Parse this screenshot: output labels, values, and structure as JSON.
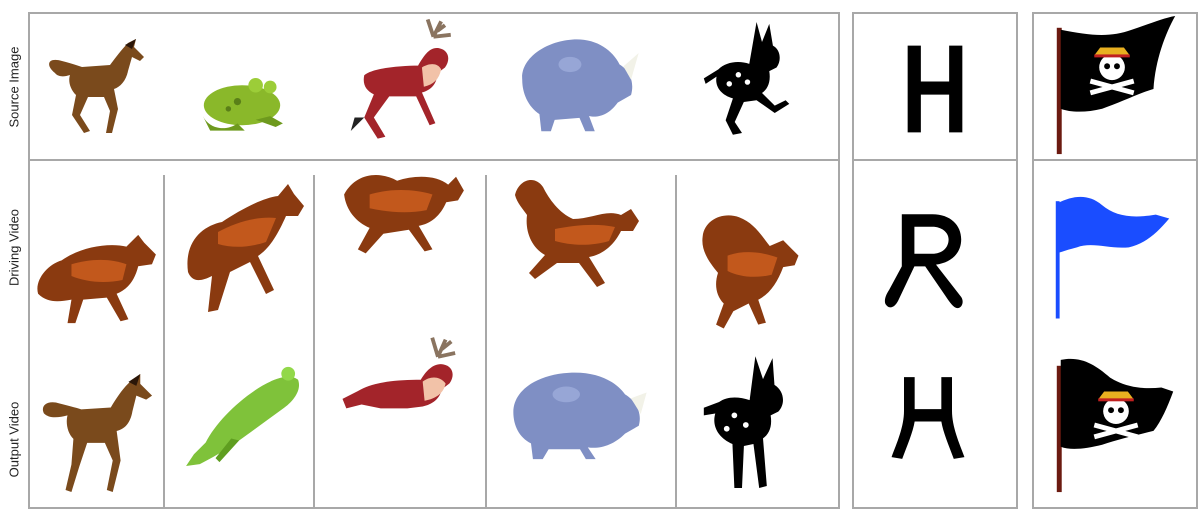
{
  "row_labels": {
    "source": "Source Image",
    "driving": "Driving Video",
    "output": "Output Video"
  },
  "colors": {
    "border": "#a8a8a8",
    "horse": "#7a4a1c",
    "wolf": "#8a3a10",
    "frog": "#8ab82a",
    "deer_red": "#a3242a",
    "rhino": "#7f8fc4",
    "black": "#000000",
    "blue_flag": "#1a4dff"
  },
  "letters": {
    "source": "H",
    "driving": "R"
  },
  "icons": {
    "source_row": [
      "horse-icon",
      "frog-icon",
      "reindeer-icon",
      "rhino-icon",
      "fawn-icon"
    ],
    "driving_row": [
      "wolf-icon",
      "wolf-icon",
      "wolf-icon",
      "wolf-icon",
      "wolf-icon"
    ],
    "output_row": [
      "horse-icon",
      "frog-icon",
      "reindeer-icon",
      "rhino-icon",
      "fawn-icon"
    ],
    "flags": [
      "pirate-flag-icon",
      "blue-flag-icon",
      "pirate-flag-icon"
    ]
  }
}
